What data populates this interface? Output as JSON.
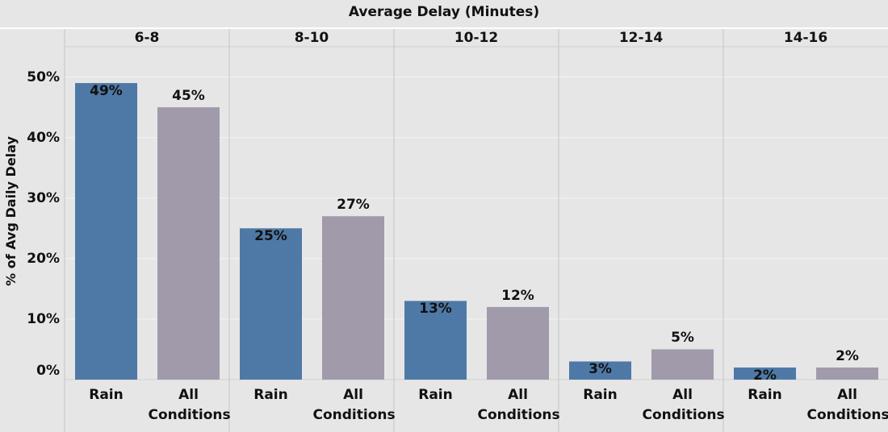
{
  "chart_data": {
    "type": "bar",
    "title": "Average Delay (Minutes)",
    "y_label": "% of Avg Daily Delay",
    "categories": [
      "6-8",
      "8-10",
      "10-12",
      "12-14",
      "14-16"
    ],
    "series": [
      {
        "name": "Rain",
        "color": "#4e79a7",
        "values": [
          49,
          25,
          13,
          3,
          2
        ],
        "value_labels": [
          "49%",
          "25%",
          "13%",
          "3%",
          "2%"
        ]
      },
      {
        "name": "All Conditions",
        "color": "#a09aab",
        "values": [
          45,
          27,
          12,
          5,
          2
        ],
        "value_labels": [
          "45%",
          "27%",
          "12%",
          "5%",
          "2%"
        ]
      }
    ],
    "ylim": [
      0,
      55
    ],
    "yticks": [
      {
        "value": 0,
        "label": "0%"
      },
      {
        "value": 10,
        "label": "10%"
      },
      {
        "value": 20,
        "label": "20%"
      },
      {
        "value": 30,
        "label": "30%"
      },
      {
        "value": 40,
        "label": "40%"
      },
      {
        "value": 50,
        "label": "50%"
      }
    ],
    "grid": true
  }
}
